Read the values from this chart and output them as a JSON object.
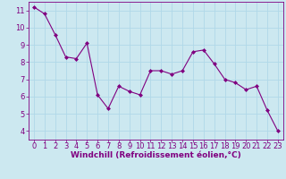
{
  "x": [
    0,
    1,
    2,
    3,
    4,
    5,
    6,
    7,
    8,
    9,
    10,
    11,
    12,
    13,
    14,
    15,
    16,
    17,
    18,
    19,
    20,
    21,
    22,
    23
  ],
  "y": [
    11.2,
    10.8,
    9.6,
    8.3,
    8.2,
    9.1,
    6.1,
    5.3,
    6.6,
    6.3,
    6.1,
    7.5,
    7.5,
    7.3,
    7.5,
    8.6,
    8.7,
    7.9,
    7.0,
    6.8,
    6.4,
    6.6,
    5.2,
    4.0
  ],
  "line_color": "#800080",
  "marker": "D",
  "marker_size": 2,
  "bg_color": "#cce8f0",
  "grid_color": "#b0d8e8",
  "xlabel": "Windchill (Refroidissement éolien,°C)",
  "xlim": [
    -0.5,
    23.5
  ],
  "ylim": [
    3.5,
    11.5
  ],
  "yticks": [
    4,
    5,
    6,
    7,
    8,
    9,
    10,
    11
  ],
  "xticks": [
    0,
    1,
    2,
    3,
    4,
    5,
    6,
    7,
    8,
    9,
    10,
    11,
    12,
    13,
    14,
    15,
    16,
    17,
    18,
    19,
    20,
    21,
    22,
    23
  ],
  "xlabel_color": "#800080",
  "tick_color": "#800080",
  "spine_color": "#800080",
  "axis_label_fontsize": 6.5,
  "tick_fontsize": 6.0
}
